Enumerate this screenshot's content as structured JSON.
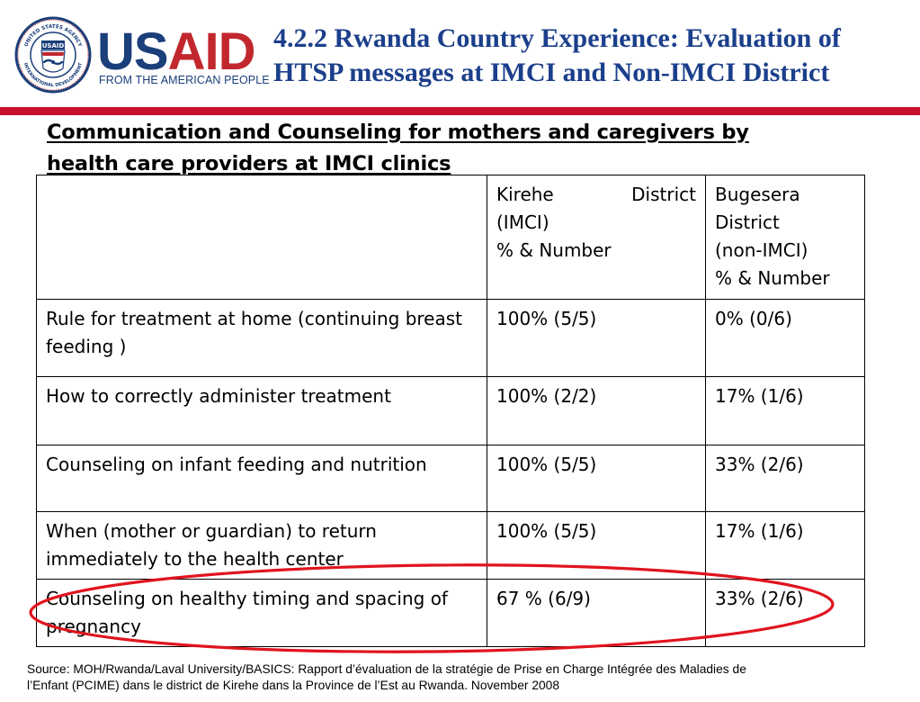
{
  "logo": {
    "wordmark_left": "US",
    "wordmark_right": "AID",
    "tagline": "FROM THE AMERICAN PEOPLE",
    "seal_top_text": "UNITED STATES AGENCY",
    "seal_bottom_text": "INTERNATIONAL DEVELOPMENT",
    "seal_center": "USAID"
  },
  "title": {
    "line1": "4.2.2 Rwanda Country Experience: Evaluation of",
    "line2": "HTSP messages at IMCI and Non-IMCI District"
  },
  "subtitle": {
    "line1": "Communication and Counseling for mothers and caregivers by",
    "line2": "health care providers at IMCI clinics"
  },
  "table": {
    "header": {
      "col1": "",
      "col2_word1": "Kirehe",
      "col2_word2": "District",
      "col2_line2": "(IMCI)",
      "col2_line3": "% & Number",
      "col3_line1": "Bugesera",
      "col3_line2": "District",
      "col3_line3": "(non-IMCI)",
      "col3_line4": "% & Number"
    },
    "rows": [
      {
        "label": "Rule for treatment at home (continuing breast feeding )",
        "kirehe": "100% (5/5)",
        "bugesera": "0% (0/6)"
      },
      {
        "label": "How to correctly administer treatment",
        "kirehe": "100% (2/2)",
        "bugesera": "17% (1/6)"
      },
      {
        "label": "Counseling on infant feeding and nutrition",
        "kirehe": "100% (5/5)",
        "bugesera": "33% (2/6)"
      },
      {
        "label": "When (mother or guardian) to return immediately to the health center",
        "kirehe": "100% (5/5)",
        "bugesera": "17% (1/6)"
      },
      {
        "label": "Counseling on healthy timing and spacing of pregnancy",
        "kirehe": "67 % (6/9)",
        "bugesera": "33% (2/6)"
      }
    ]
  },
  "source": {
    "line1": "Source: MOH/Rwanda/Laval University/BASICS: Rapport d’évaluation de la stratégie de Prise en Charge Intégrée des Maladies de",
    "line2": "l’Enfant (PCIME) dans le district de Kirehe dans la Province de l’Est au Rwanda. November 2008"
  },
  "colors": {
    "title_blue": "#1b3f8b",
    "usaid_blue": "#1a3f7a",
    "usaid_red": "#c1272d",
    "rule_red": "#c8102e",
    "highlight_red": "#e0141e"
  }
}
